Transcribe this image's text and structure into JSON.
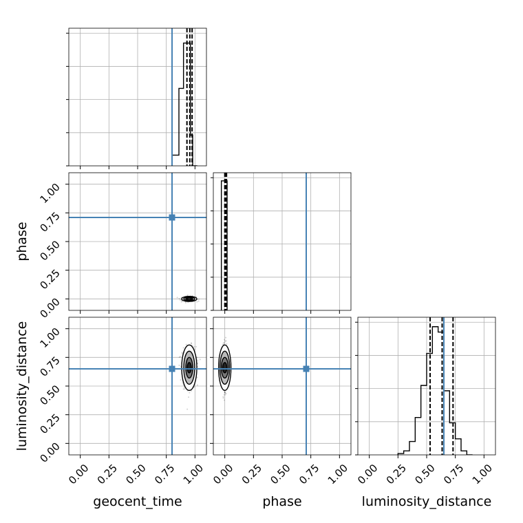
{
  "colors": {
    "truth": "#4682b4",
    "hist": "#000000",
    "grid": "#b0b0b0",
    "scatter": "#000000"
  },
  "parameters": [
    "geocent_time",
    "phase",
    "luminosity_distance"
  ],
  "chart_data": {
    "type": "corner",
    "parameters": [
      "geocent_time",
      "phase",
      "luminosity_distance"
    ],
    "range": [
      -0.1,
      1.1
    ],
    "ticks": [
      0.0,
      0.25,
      0.5,
      0.75,
      1.0
    ],
    "tick_labels": [
      "0.00",
      "0.25",
      "0.50",
      "0.75",
      "1.00"
    ],
    "grid": true,
    "truths": {
      "geocent_time": 0.8,
      "phase": 0.71,
      "luminosity_distance": 0.65
    },
    "quantiles": {
      "geocent_time": [
        0.93,
        0.955,
        0.975
      ],
      "phase": [
        0.0,
        0.005,
        0.015
      ],
      "luminosity_distance": [
        0.53,
        0.635,
        0.73
      ]
    },
    "histograms": {
      "geocent_time": {
        "bin_edges": [
          0.8,
          0.86,
          0.9,
          0.93,
          0.96,
          0.98,
          1.02
        ],
        "values": [
          0.08,
          0.58,
          0.92,
          0.92,
          0.23,
          0.0
        ]
      },
      "phase": {
        "bin_edges": [
          -0.03,
          0.02
        ],
        "values": [
          0.97
        ]
      },
      "luminosity_distance": {
        "bin_edges": [
          0.25,
          0.3,
          0.35,
          0.4,
          0.45,
          0.5,
          0.55,
          0.6,
          0.65,
          0.7,
          0.75,
          0.8,
          0.85,
          0.9
        ],
        "values": [
          0.01,
          0.03,
          0.1,
          0.28,
          0.52,
          0.76,
          0.96,
          0.92,
          0.48,
          0.24,
          0.12,
          0.03,
          0.0
        ]
      }
    },
    "pairs": [
      {
        "x": "geocent_time",
        "y": "phase",
        "center": [
          0.95,
          0.0
        ],
        "sigma": [
          0.03,
          0.01
        ]
      },
      {
        "x": "geocent_time",
        "y": "luminosity_distance",
        "center": [
          0.95,
          0.66
        ],
        "sigma": [
          0.03,
          0.09
        ]
      },
      {
        "x": "phase",
        "y": "luminosity_distance",
        "center": [
          0.0,
          0.66
        ],
        "sigma": [
          0.01,
          0.09
        ]
      }
    ]
  }
}
